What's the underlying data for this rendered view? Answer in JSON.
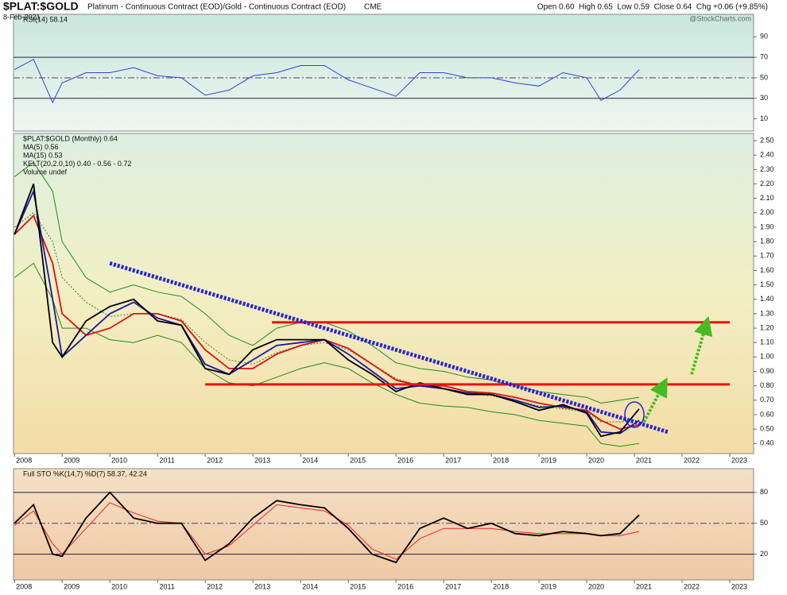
{
  "header": {
    "symbol": "$PLAT:$GOLD",
    "description": "Platinum - Continuous Contract (EOD)/Gold - Continuous Contract (EOD)",
    "exchange": "CME",
    "date": "8-Feb-2021",
    "quote": "Open 0.60  High 0.65  Low 0.59  Close 0.64  Chg +0.06 (+9.85%)",
    "credit": "@StockCharts.com"
  },
  "chart_data": [
    {
      "type": "line",
      "panel": "rsi",
      "legend": [
        "RSI(14) 58.14"
      ],
      "x": [
        2008.0,
        2008.4,
        2008.8,
        2009.0,
        2009.5,
        2010.0,
        2010.5,
        2011.0,
        2011.5,
        2012.0,
        2012.5,
        2013.0,
        2013.5,
        2014.0,
        2014.5,
        2015.0,
        2015.5,
        2016.0,
        2016.5,
        2017.0,
        2017.5,
        2018.0,
        2018.5,
        2019.0,
        2019.5,
        2020.0,
        2020.3,
        2020.7,
        2021.1
      ],
      "xlim": [
        2007.98,
        2023.5
      ],
      "ylim": [
        -2,
        112
      ],
      "yticks": [
        10,
        30,
        50,
        70,
        90
      ],
      "levels": [
        70,
        50,
        30
      ],
      "series": [
        {
          "name": "RSI(14)",
          "color": "#3344cc",
          "values": [
            58,
            68,
            26,
            45,
            55,
            55,
            60,
            52,
            50,
            33,
            38,
            52,
            55,
            62,
            62,
            48,
            40,
            32,
            55,
            55,
            50,
            50,
            45,
            42,
            55,
            50,
            28,
            38,
            58
          ]
        }
      ]
    },
    {
      "type": "line",
      "panel": "price",
      "legend": [
        "$PLAT:$GOLD (Monthly) 0.64",
        "MA(5) 0.56",
        "MA(15) 0.53",
        "KELT(20,2.0,10) 0.40 - 0.56 - 0.72",
        "Volume undef"
      ],
      "x": [
        2008.0,
        2008.4,
        2008.8,
        2009.0,
        2009.5,
        2010.0,
        2010.5,
        2011.0,
        2011.5,
        2012.0,
        2012.5,
        2013.0,
        2013.5,
        2014.0,
        2014.5,
        2015.0,
        2015.5,
        2016.0,
        2016.5,
        2017.0,
        2017.5,
        2018.0,
        2018.5,
        2019.0,
        2019.5,
        2020.0,
        2020.3,
        2020.7,
        2021.1
      ],
      "xlim": [
        2007.98,
        2023.5
      ],
      "ylim": [
        0.33,
        2.55
      ],
      "xticks": [
        2008,
        2009,
        2010,
        2011,
        2012,
        2013,
        2014,
        2015,
        2016,
        2017,
        2018,
        2019,
        2020,
        2021,
        2022,
        2023
      ],
      "yticks": [
        {
          "value": 0.4,
          "label": "0.40"
        },
        {
          "value": 0.5,
          "label": "0.50"
        },
        {
          "value": 0.6,
          "label": "0.60"
        },
        {
          "value": 0.7,
          "label": "0.70"
        },
        {
          "value": 0.8,
          "label": "0.80"
        },
        {
          "value": 0.9,
          "label": "0.90"
        },
        {
          "value": 1.0,
          "label": "1.00"
        },
        {
          "value": 1.1,
          "label": "1.10"
        },
        {
          "value": 1.2,
          "label": "1.20"
        },
        {
          "value": 1.3,
          "label": "1.30"
        },
        {
          "value": 1.4,
          "label": "1.40"
        },
        {
          "value": 1.5,
          "label": "1.50"
        },
        {
          "value": 1.6,
          "label": "1.60"
        },
        {
          "value": 1.7,
          "label": "1.70"
        },
        {
          "value": 1.8,
          "label": "1.80"
        },
        {
          "value": 1.9,
          "label": "1.90"
        },
        {
          "value": 2.0,
          "label": "2.00"
        },
        {
          "value": 2.1,
          "label": "2.10"
        },
        {
          "value": 2.2,
          "label": "2.20"
        },
        {
          "value": 2.3,
          "label": "2.30"
        },
        {
          "value": 2.4,
          "label": "2.40"
        },
        {
          "value": 2.5,
          "label": "2.50"
        }
      ],
      "series": [
        {
          "name": "KELT upper",
          "color": "#228822",
          "values": [
            2.25,
            2.35,
            2.15,
            1.8,
            1.55,
            1.45,
            1.5,
            1.45,
            1.42,
            1.3,
            1.15,
            1.08,
            1.2,
            1.24,
            1.24,
            1.18,
            1.08,
            0.96,
            0.92,
            0.9,
            0.86,
            0.84,
            0.8,
            0.76,
            0.74,
            0.72,
            0.68,
            0.7,
            0.72
          ]
        },
        {
          "name": "KELT middle",
          "color": "#228822",
          "dashed": true,
          "values": [
            1.9,
            2.0,
            1.8,
            1.55,
            1.38,
            1.28,
            1.3,
            1.3,
            1.26,
            1.1,
            0.98,
            0.95,
            1.03,
            1.08,
            1.1,
            1.05,
            0.95,
            0.85,
            0.8,
            0.78,
            0.75,
            0.73,
            0.7,
            0.66,
            0.64,
            0.62,
            0.55,
            0.55,
            0.56
          ]
        },
        {
          "name": "KELT lower",
          "color": "#228822",
          "values": [
            1.55,
            1.65,
            1.4,
            1.2,
            1.2,
            1.12,
            1.1,
            1.15,
            1.1,
            0.92,
            0.82,
            0.8,
            0.86,
            0.92,
            0.96,
            0.92,
            0.82,
            0.74,
            0.68,
            0.66,
            0.65,
            0.62,
            0.6,
            0.56,
            0.54,
            0.52,
            0.4,
            0.38,
            0.4
          ]
        },
        {
          "name": "MA(15)",
          "color": "#dd1111",
          "values": [
            1.85,
            1.98,
            1.65,
            1.3,
            1.15,
            1.2,
            1.3,
            1.3,
            1.25,
            1.05,
            0.92,
            0.92,
            1.02,
            1.08,
            1.12,
            1.06,
            0.95,
            0.84,
            0.8,
            0.8,
            0.76,
            0.75,
            0.72,
            0.68,
            0.65,
            0.63,
            0.56,
            0.5,
            0.53
          ]
        },
        {
          "name": "MA(5)",
          "color": "#1a1aa0",
          "values": [
            1.85,
            2.15,
            1.4,
            1.0,
            1.15,
            1.3,
            1.38,
            1.27,
            1.22,
            0.95,
            0.88,
            0.98,
            1.08,
            1.1,
            1.12,
            1.02,
            0.9,
            0.78,
            0.8,
            0.78,
            0.75,
            0.74,
            0.7,
            0.65,
            0.66,
            0.62,
            0.48,
            0.47,
            0.56
          ]
        },
        {
          "name": "$PLAT:$GOLD",
          "color": "#000000",
          "values": [
            1.85,
            2.2,
            1.1,
            1.0,
            1.25,
            1.35,
            1.4,
            1.25,
            1.22,
            0.92,
            0.88,
            1.05,
            1.12,
            1.12,
            1.12,
            0.98,
            0.88,
            0.76,
            0.82,
            0.78,
            0.74,
            0.74,
            0.69,
            0.63,
            0.67,
            0.61,
            0.45,
            0.48,
            0.64
          ]
        }
      ],
      "annotations": [
        {
          "kind": "segment",
          "color": "#ee1111",
          "x": [
            2013.4,
            2023.0
          ],
          "y": [
            1.24,
            1.24
          ]
        },
        {
          "kind": "segment",
          "color": "#ee1111",
          "x": [
            2012.0,
            2023.0
          ],
          "y": [
            0.81,
            0.81
          ]
        },
        {
          "kind": "trend",
          "color": "#2222dd",
          "x": [
            2010.0,
            2021.7
          ],
          "y": [
            1.65,
            0.48
          ]
        },
        {
          "kind": "arrow",
          "color": "#44bb22",
          "x": [
            2021.2,
            2021.6
          ],
          "y": [
            0.55,
            0.8
          ]
        },
        {
          "kind": "arrow",
          "color": "#44bb22",
          "x": [
            2022.2,
            2022.5
          ],
          "y": [
            0.88,
            1.22
          ]
        },
        {
          "kind": "ellipse",
          "color": "#2222dd",
          "x": [
            2021.0
          ],
          "y": [
            0.6
          ]
        }
      ]
    },
    {
      "type": "line",
      "panel": "sto",
      "legend": [
        "Full STO %K(14,7) %D(7) 58.37, 42.24"
      ],
      "x": [
        2008.0,
        2008.4,
        2008.8,
        2009.0,
        2009.5,
        2010.0,
        2010.5,
        2011.0,
        2011.5,
        2012.0,
        2012.5,
        2013.0,
        2013.5,
        2014.0,
        2014.5,
        2015.0,
        2015.5,
        2016.0,
        2016.5,
        2017.0,
        2017.5,
        2018.0,
        2018.5,
        2019.0,
        2019.5,
        2020.0,
        2020.3,
        2020.7,
        2021.1
      ],
      "xlim": [
        2007.98,
        2023.5
      ],
      "ylim": [
        -5,
        103
      ],
      "yticks": [
        20,
        50,
        80
      ],
      "levels": [
        80,
        50,
        20
      ],
      "xticks": [
        2008,
        2009,
        2010,
        2011,
        2012,
        2013,
        2014,
        2015,
        2016,
        2017,
        2018,
        2019,
        2020,
        2021,
        2022,
        2023
      ],
      "series": [
        {
          "name": "%D",
          "color": "#ee2222",
          "values": [
            48,
            62,
            30,
            20,
            45,
            70,
            60,
            52,
            50,
            20,
            28,
            48,
            68,
            65,
            62,
            48,
            25,
            15,
            35,
            45,
            45,
            45,
            42,
            40,
            40,
            40,
            38,
            38,
            42
          ]
        },
        {
          "name": "%K",
          "color": "#000000",
          "values": [
            50,
            68,
            20,
            18,
            55,
            80,
            55,
            50,
            50,
            14,
            30,
            55,
            72,
            68,
            65,
            45,
            20,
            12,
            45,
            55,
            45,
            50,
            40,
            38,
            42,
            40,
            38,
            40,
            58
          ]
        }
      ]
    }
  ]
}
